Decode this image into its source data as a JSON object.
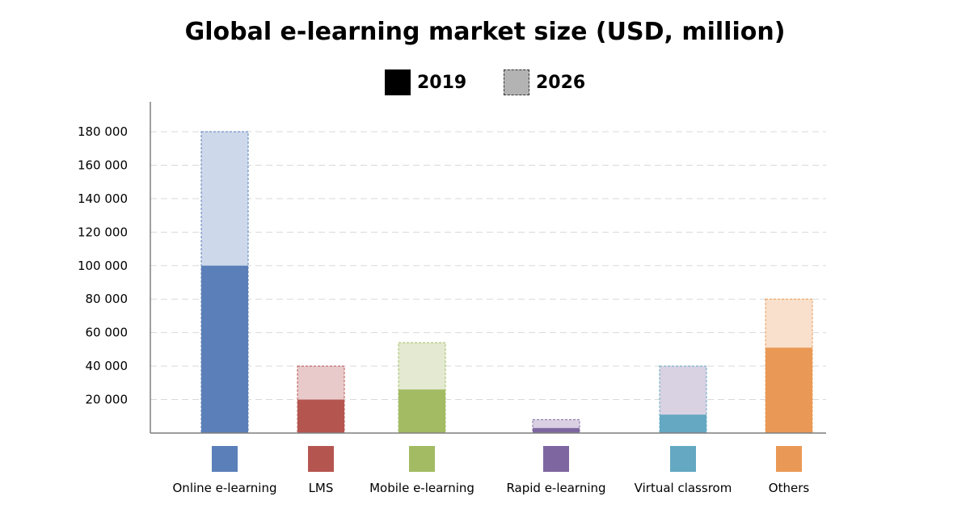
{
  "chart_data": {
    "type": "bar",
    "title": "Global e-learning market size (USD, million)",
    "xlabel": "",
    "ylabel": "",
    "ylim": [
      0,
      180000
    ],
    "yticks": [
      "180 000",
      "160 000",
      "140 000",
      "120 000",
      "100 000",
      "80 000",
      "60 000",
      "40 000",
      "20 000"
    ],
    "ytick_values": [
      180000,
      160000,
      140000,
      120000,
      100000,
      80000,
      60000,
      40000,
      20000
    ],
    "grid": true,
    "legend_position": "top",
    "stacked_overlay": true,
    "categories": [
      "Online e-learning",
      "LMS",
      "Mobile e-learning",
      "Rapid e-learning",
      "Virtual classrom",
      "Others"
    ],
    "colors": [
      "#5b7fb8",
      "#b55550",
      "#a3bb62",
      "#7e67a0",
      "#64a8c2",
      "#e99955"
    ],
    "light_colors": [
      "#cdd9eb",
      "#e8caca",
      "#e3ead1",
      "#d9d1e3",
      "#d8d2e3",
      "#f9e0cc"
    ],
    "series": [
      {
        "name": "2019",
        "values": [
          100000,
          20000,
          26000,
          3000,
          11000,
          51000
        ]
      },
      {
        "name": "2026",
        "values": [
          180000,
          40000,
          54000,
          8000,
          40000,
          80000
        ]
      }
    ]
  }
}
